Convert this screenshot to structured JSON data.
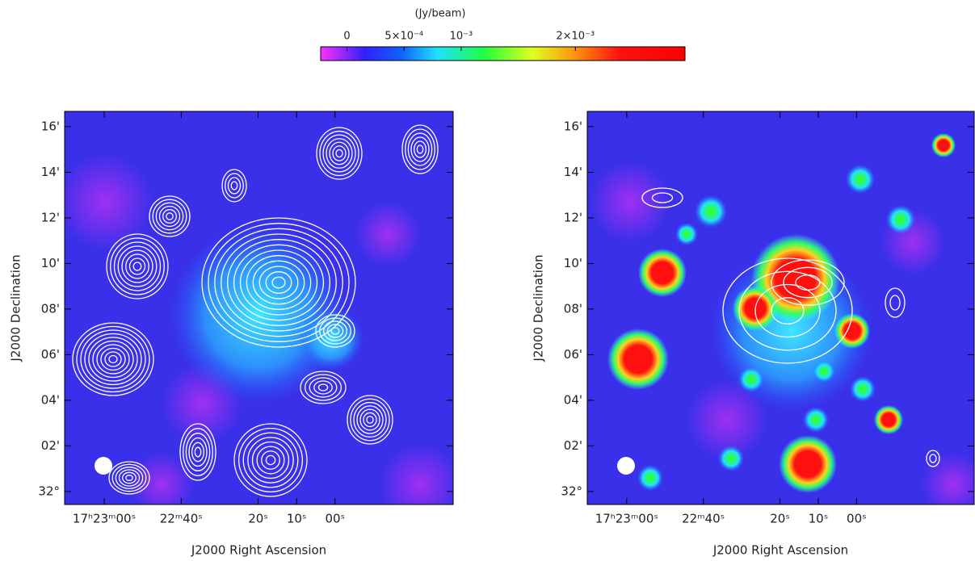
{
  "colorbar": {
    "label": "(Jy/beam)",
    "clim": [
      -0.00023,
      0.00296
    ],
    "ticks": [
      0,
      {
        "value": 0.0005,
        "label": "5×10⁻⁴"
      },
      {
        "value": 0.001,
        "label": "10⁻³"
      },
      {
        "value": 0.002,
        "label": "2×10⁻³"
      }
    ]
  },
  "chart_data": [
    {
      "type": "image",
      "xlabel": "J2000 Right Ascension",
      "ylabel": "J2000 Declination",
      "xlim": [
        70.3,
        -30.7
      ],
      "xticks": [
        {
          "value": 60,
          "label": "17ʰ23ᵐ00ˢ"
        },
        {
          "value": 40,
          "label": "22ᵐ40ˢ"
        },
        {
          "value": 20,
          "label": "20ˢ"
        },
        {
          "value": 10,
          "label": "10ˢ"
        },
        {
          "value": 0,
          "label": "00ˢ"
        }
      ],
      "ylim": [
        -0.57,
        16.67
      ],
      "yticks": [
        {
          "value": 0,
          "label": "32°"
        },
        {
          "value": 2,
          "label": "02'"
        },
        {
          "value": 4,
          "label": "04'"
        },
        {
          "value": 6,
          "label": "06'"
        },
        {
          "value": 8,
          "label": "08'"
        },
        {
          "value": 10,
          "label": "10'"
        },
        {
          "value": 12,
          "label": "12'"
        },
        {
          "value": 14,
          "label": "14'"
        },
        {
          "value": 16,
          "label": "16'"
        }
      ]
    },
    {
      "type": "image",
      "xlabel": "J2000 Right Ascension",
      "ylabel": "J2000 Declination",
      "xlim": [
        70.3,
        -30.7
      ],
      "xticks": [
        {
          "value": 60,
          "label": "17ʰ23ᵐ00ˢ"
        },
        {
          "value": 40,
          "label": "22ᵐ40ˢ"
        },
        {
          "value": 20,
          "label": "20ˢ"
        },
        {
          "value": 10,
          "label": "10ˢ"
        },
        {
          "value": 0,
          "label": "00ˢ"
        }
      ],
      "ylim": [
        -0.57,
        16.67
      ],
      "yticks": [
        {
          "value": 0,
          "label": "32°"
        },
        {
          "value": 2,
          "label": "02'"
        },
        {
          "value": 4,
          "label": "04'"
        },
        {
          "value": 6,
          "label": "06'"
        },
        {
          "value": 8,
          "label": "08'"
        },
        {
          "value": 10,
          "label": "10'"
        },
        {
          "value": 12,
          "label": "12'"
        },
        {
          "value": 14,
          "label": "14'"
        },
        {
          "value": 16,
          "label": "16'"
        }
      ]
    }
  ]
}
